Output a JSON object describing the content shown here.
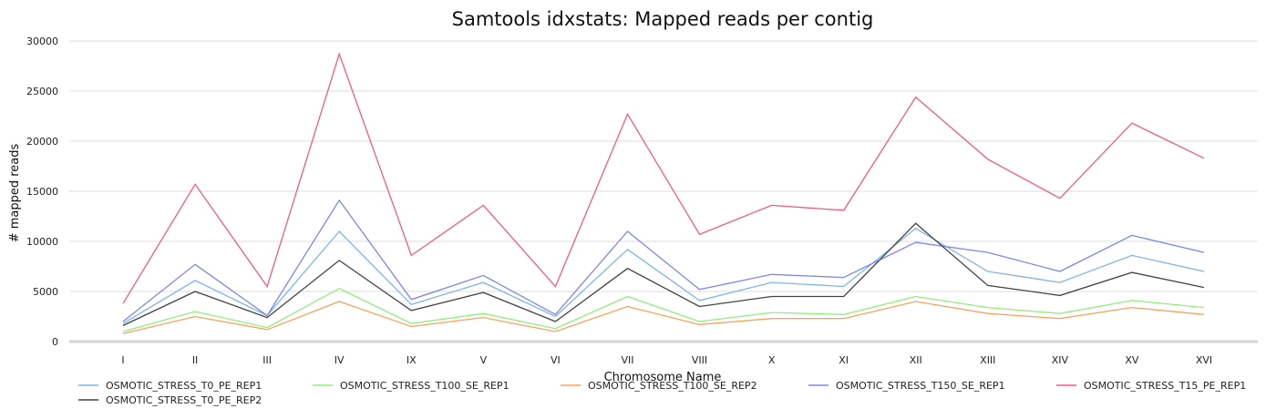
{
  "chart_data": {
    "type": "line",
    "title": "Samtools idxstats: Mapped reads per contig",
    "xlabel": "Chromosome Name",
    "ylabel": "# mapped reads",
    "ylim": [
      0,
      30000
    ],
    "yticks": [
      0,
      5000,
      10000,
      15000,
      20000,
      25000,
      30000
    ],
    "grid": true,
    "legend_position": "bottom",
    "categories": [
      "I",
      "II",
      "III",
      "IV",
      "IX",
      "V",
      "VI",
      "VII",
      "VIII",
      "X",
      "XI",
      "XII",
      "XIII",
      "XIV",
      "XV",
      "XVI"
    ],
    "series": [
      {
        "name": "OSMOTIC_STRESS_T0_PE_REP1",
        "color": "#7cb5ec",
        "values": [
          1800,
          6100,
          2600,
          11000,
          3700,
          5900,
          2500,
          9200,
          4100,
          5900,
          5500,
          11300,
          7000,
          5900,
          8600,
          7000
        ]
      },
      {
        "name": "OSMOTIC_STRESS_T100_SE_REP1",
        "color": "#90ed7d",
        "values": [
          1000,
          3000,
          1400,
          5300,
          1800,
          2800,
          1300,
          4500,
          2000,
          2900,
          2700,
          4500,
          3400,
          2800,
          4100,
          3400
        ]
      },
      {
        "name": "OSMOTIC_STRESS_T100_SE_REP2",
        "color": "#f7a35c",
        "values": [
          800,
          2500,
          1200,
          4000,
          1500,
          2400,
          1000,
          3500,
          1700,
          2300,
          2300,
          4000,
          2800,
          2300,
          3400,
          2700
        ]
      },
      {
        "name": "OSMOTIC_STRESS_T150_SE_REP1",
        "color": "#8085e9",
        "values": [
          2000,
          7700,
          2600,
          14100,
          4200,
          6600,
          2700,
          11000,
          5200,
          6700,
          6400,
          9900,
          8900,
          7000,
          10600,
          8900
        ]
      },
      {
        "name": "OSMOTIC_STRESS_T15_PE_REP1",
        "color": "#f15c80",
        "values": [
          3800,
          15700,
          5500,
          28700,
          8600,
          13600,
          5500,
          22700,
          10700,
          13600,
          13100,
          24400,
          18200,
          14300,
          21800,
          18300
        ]
      },
      {
        "name": "OSMOTIC_STRESS_T0_PE_REP2",
        "color": "#434348",
        "values": [
          1600,
          5000,
          2400,
          8100,
          3100,
          4900,
          2000,
          7300,
          3500,
          4500,
          4500,
          11800,
          5600,
          4600,
          6900,
          5400
        ]
      }
    ]
  }
}
